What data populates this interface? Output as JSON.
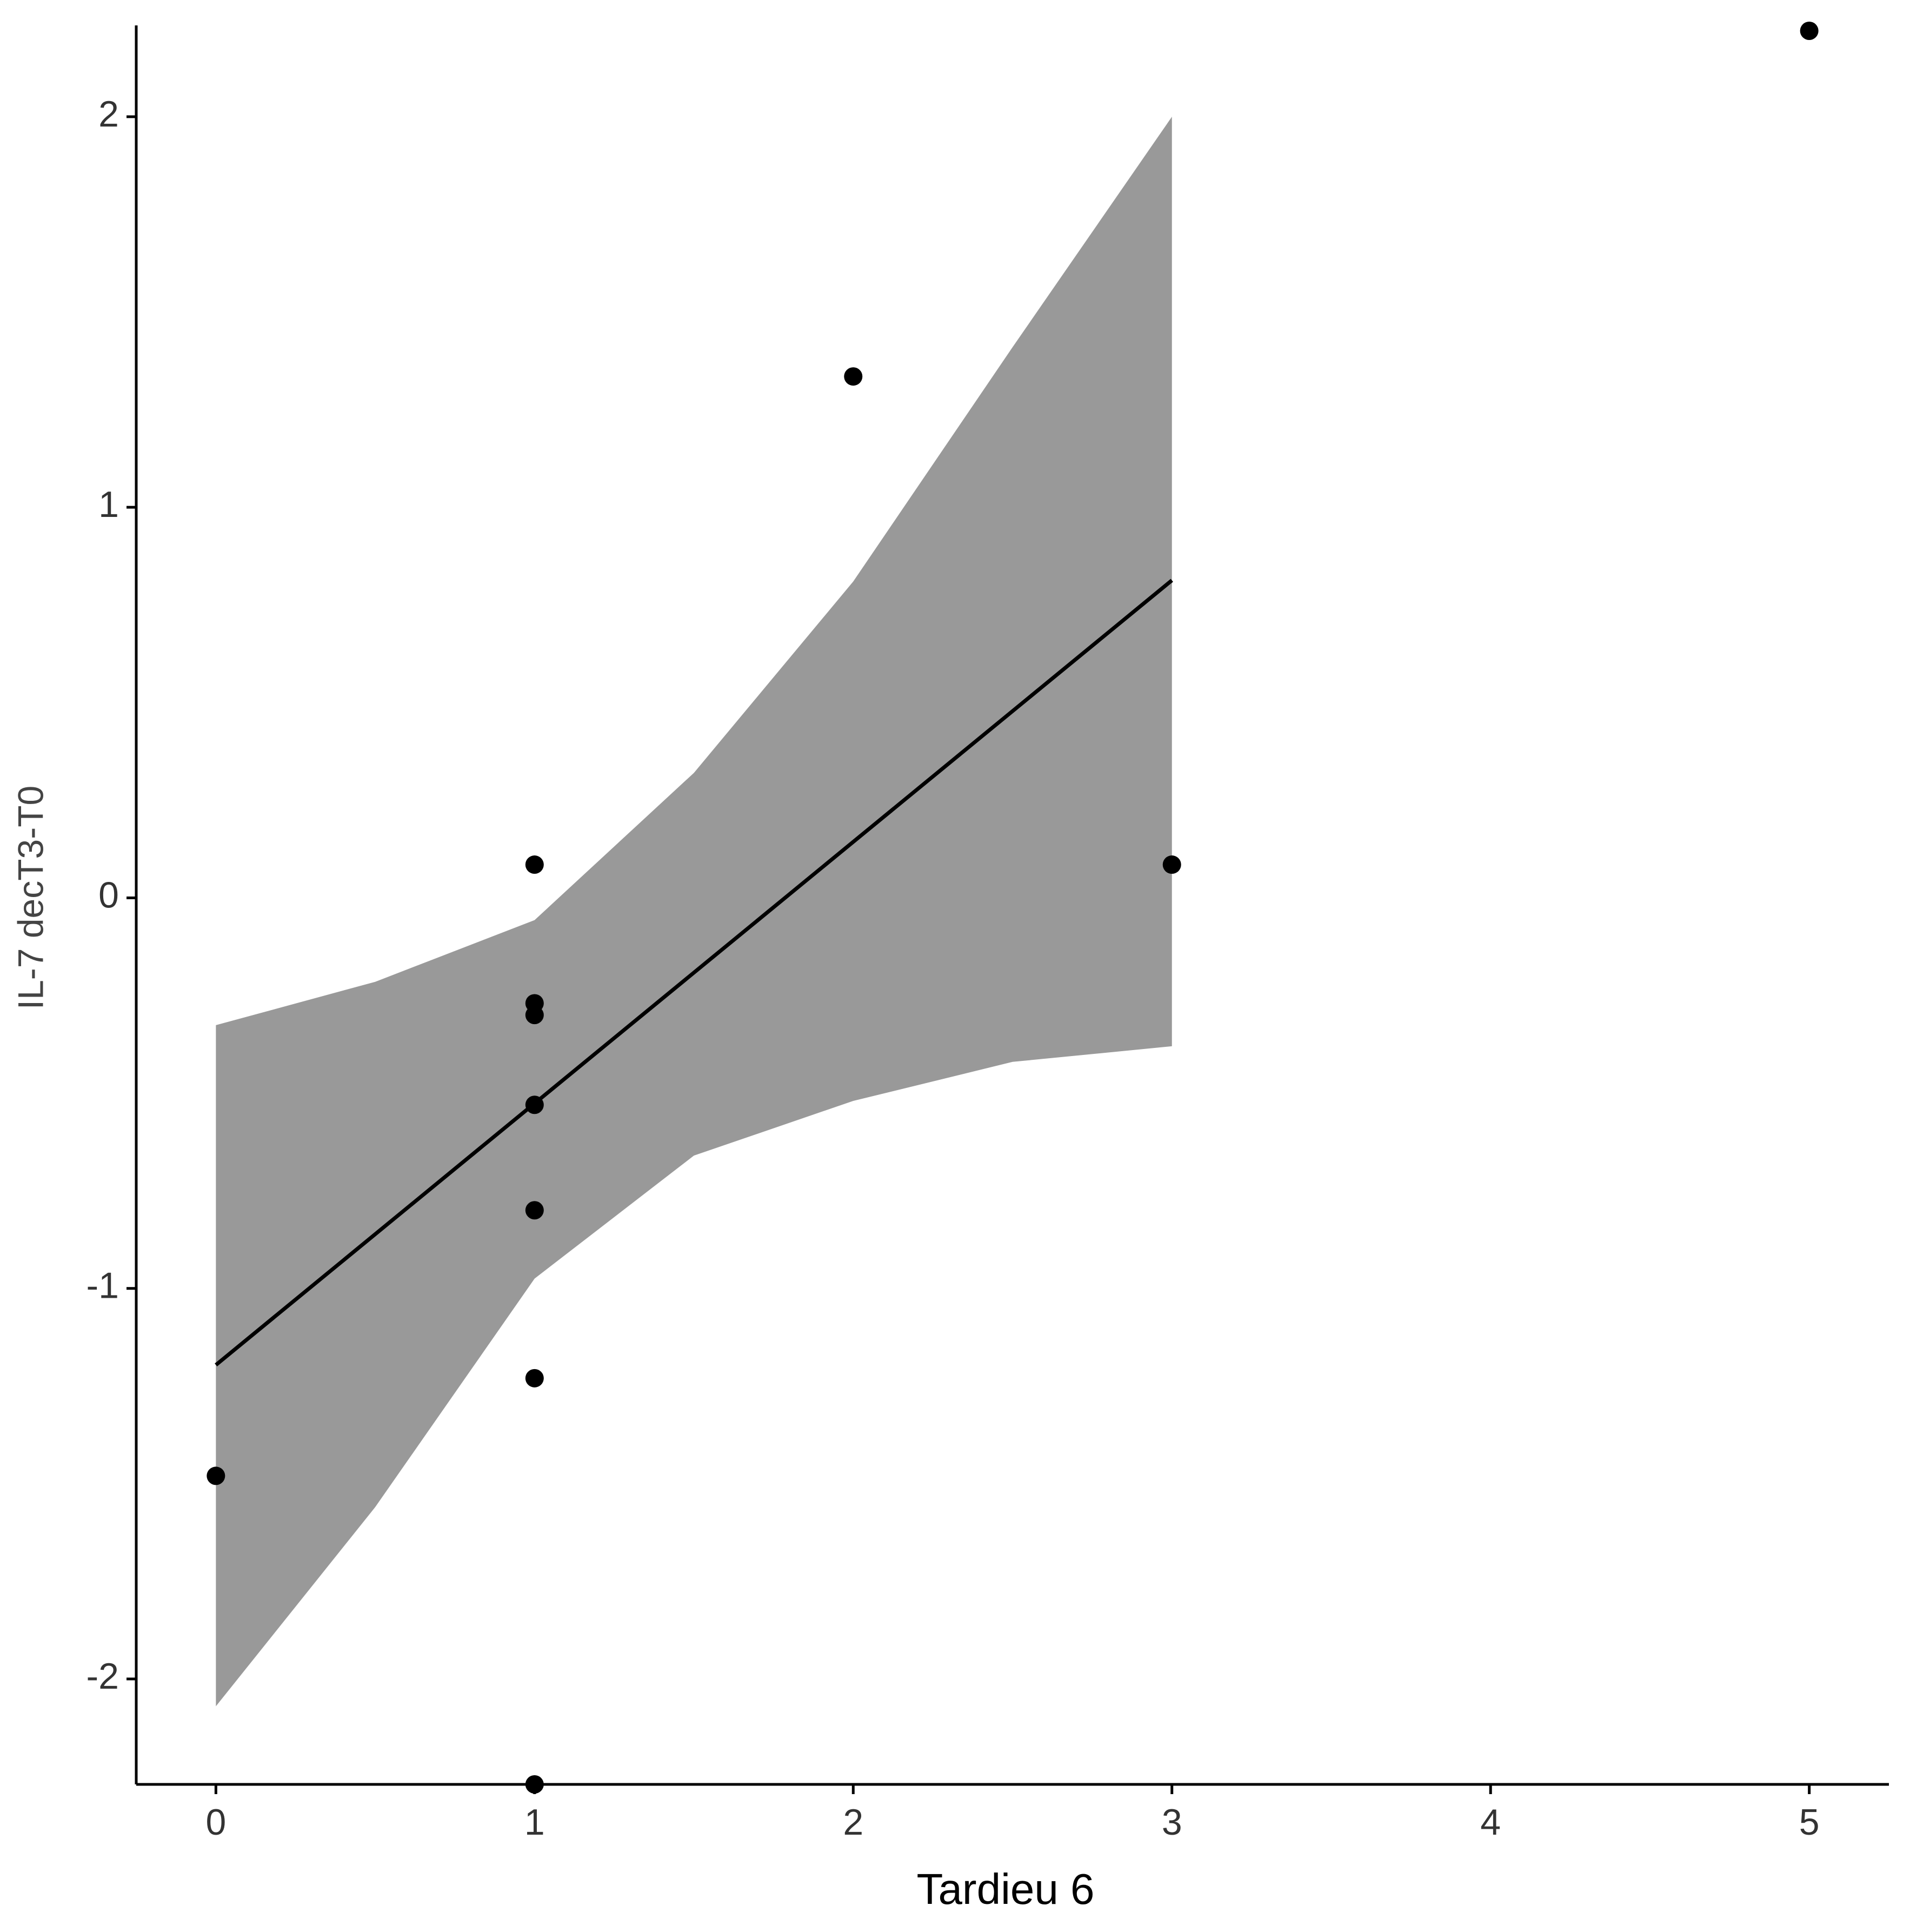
{
  "chart_data": {
    "type": "scatter",
    "x_label": "Tardieu 6",
    "y_label": "IL-7 decT3-T0",
    "x": [
      0,
      1,
      1,
      1,
      1,
      1,
      1,
      1,
      2,
      3,
      5
    ],
    "values": [
      -1.48,
      0.085,
      -0.27,
      -0.3,
      -0.53,
      -0.8,
      -1.23,
      -2.27,
      1.335,
      0.085,
      2.22
    ],
    "color": "#000000",
    "fit": {
      "x": [
        0,
        3
      ],
      "values": [
        -1.196,
        0.813
      ],
      "color": "#000000"
    },
    "band": {
      "x": [
        0,
        0.5,
        1,
        1.5,
        2,
        2.5,
        3
      ],
      "upper": [
        -0.326,
        -0.215,
        -0.057,
        0.32,
        0.81,
        1.41,
        2.0
      ],
      "lower": [
        -2.07,
        -1.56,
        -0.975,
        -0.66,
        -0.52,
        -0.42,
        -0.38
      ],
      "color": "#999999"
    },
    "xlim": [
      -0.25,
      5.25
    ],
    "xticks": [
      0,
      1,
      2,
      3,
      4,
      5
    ],
    "ylim": [
      -2.27,
      2.22
    ],
    "yticks": [
      -2,
      -1,
      0,
      1,
      2
    ],
    "grid": false
  }
}
